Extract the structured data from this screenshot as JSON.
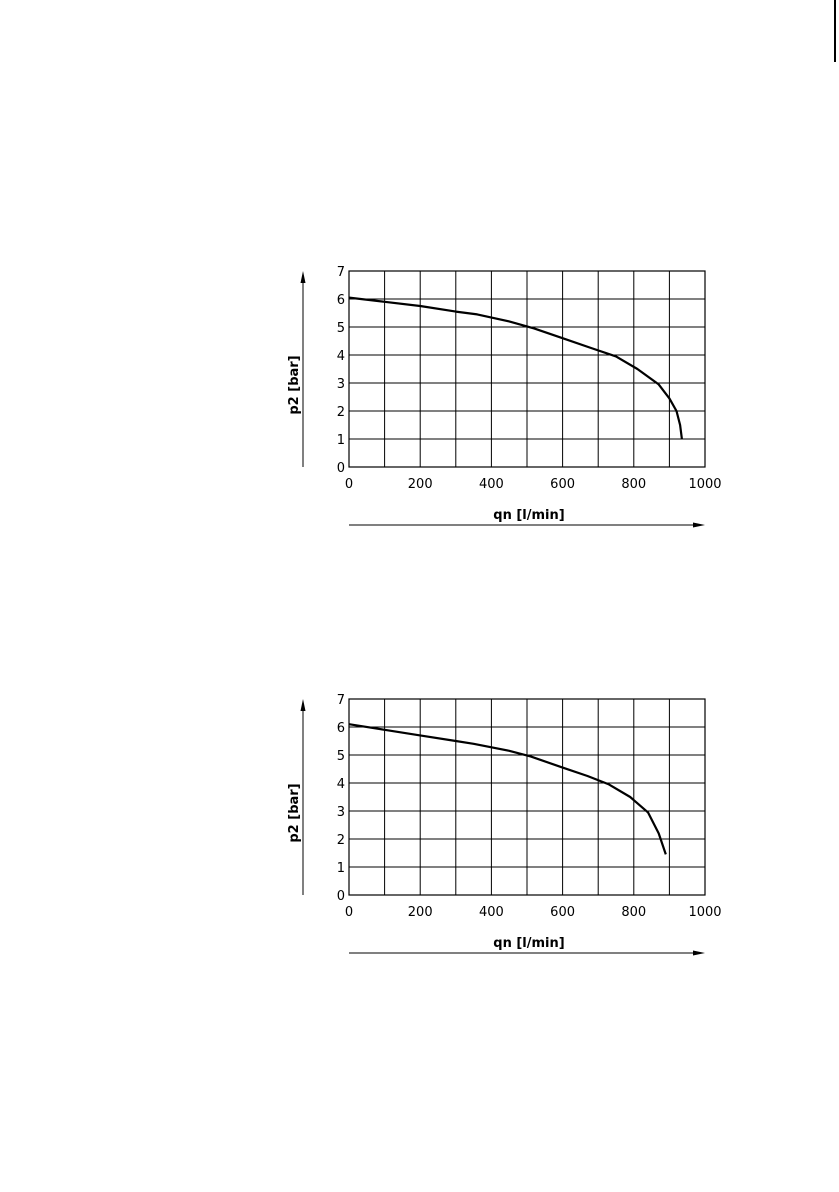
{
  "chart_data": [
    {
      "type": "line",
      "xlabel": "qn [l/min]",
      "ylabel": "p2 [bar]",
      "xlim": [
        0,
        1000
      ],
      "ylim": [
        0,
        7
      ],
      "x_ticks": [
        "0",
        "200",
        "400",
        "600",
        "800",
        "1000"
      ],
      "y_ticks": [
        "0",
        "1",
        "2",
        "3",
        "4",
        "5",
        "6",
        "7"
      ],
      "grid": true,
      "series": [
        {
          "x": [
            0,
            100,
            200,
            300,
            360,
            450,
            520,
            600,
            680,
            750,
            810,
            870,
            900,
            920,
            930,
            935
          ],
          "y": [
            6.05,
            5.9,
            5.75,
            5.55,
            5.45,
            5.2,
            4.95,
            4.6,
            4.25,
            3.95,
            3.5,
            2.95,
            2.45,
            2.0,
            1.5,
            1.0
          ]
        }
      ],
      "colors": {
        "line": "#000000",
        "grid": "#000000"
      }
    },
    {
      "type": "line",
      "xlabel": "qn [l/min]",
      "ylabel": "p2 [bar]",
      "xlim": [
        0,
        1000
      ],
      "ylim": [
        0,
        7
      ],
      "x_ticks": [
        "0",
        "200",
        "400",
        "600",
        "800",
        "1000"
      ],
      "y_ticks": [
        "0",
        "1",
        "2",
        "3",
        "4",
        "5",
        "6",
        "7"
      ],
      "grid": true,
      "series": [
        {
          "x": [
            0,
            100,
            200,
            300,
            350,
            450,
            510,
            600,
            670,
            730,
            790,
            840,
            870,
            890
          ],
          "y": [
            6.1,
            5.9,
            5.7,
            5.5,
            5.4,
            5.15,
            4.95,
            4.55,
            4.25,
            3.95,
            3.5,
            2.95,
            2.2,
            1.45
          ]
        }
      ],
      "colors": {
        "line": "#000000",
        "grid": "#000000"
      }
    }
  ]
}
